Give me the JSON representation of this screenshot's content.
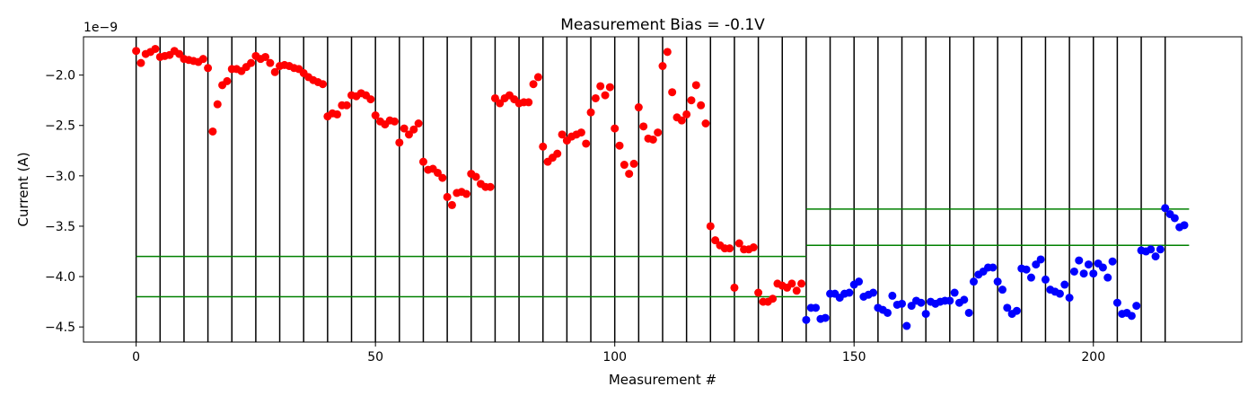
{
  "chart_data": {
    "type": "scatter",
    "title": "Measurement Bias = -0.1V",
    "xlabel": "Measurement #",
    "ylabel": "Current (A)",
    "y_offset_label": "1e−9",
    "xlim": [
      -11,
      231
    ],
    "ylim": [
      -4.65,
      -1.62
    ],
    "x_ticks": [
      0,
      50,
      100,
      150,
      200
    ],
    "x_tick_labels": [
      "0",
      "50",
      "100",
      "150",
      "200"
    ],
    "y_ticks": [
      -2.0,
      -2.5,
      -3.0,
      -3.5,
      -4.0,
      -4.5
    ],
    "y_tick_labels": [
      "−2.0",
      "−2.5",
      "−3.0",
      "−3.5",
      "−4.0",
      "−4.5"
    ],
    "grid": false,
    "vertical_lines": {
      "color": "#000000",
      "x": [
        0,
        5,
        10,
        15,
        20,
        25,
        30,
        35,
        40,
        45,
        50,
        55,
        60,
        65,
        70,
        75,
        80,
        85,
        90,
        95,
        100,
        105,
        110,
        115,
        120,
        125,
        130,
        135,
        140,
        145,
        150,
        155,
        160,
        165,
        170,
        175,
        180,
        185,
        190,
        195,
        200,
        205,
        210,
        215
      ]
    },
    "horizontal_lines": {
      "color": "#008000",
      "segments": [
        {
          "x": [
            0,
            140
          ],
          "y": -3.8
        },
        {
          "x": [
            0,
            140
          ],
          "y": -4.2
        },
        {
          "x": [
            140,
            220
          ],
          "y": -3.33
        },
        {
          "x": [
            140,
            220
          ],
          "y": -3.69
        }
      ]
    },
    "series": [
      {
        "color": "#ff0000",
        "points": [
          [
            0,
            -1.76
          ],
          [
            1,
            -1.88
          ],
          [
            2,
            -1.79
          ],
          [
            3,
            -1.77
          ],
          [
            4,
            -1.74
          ],
          [
            5,
            -1.82
          ],
          [
            6,
            -1.81
          ],
          [
            7,
            -1.8
          ],
          [
            8,
            -1.76
          ],
          [
            9,
            -1.79
          ],
          [
            10,
            -1.84
          ],
          [
            11,
            -1.85
          ],
          [
            12,
            -1.86
          ],
          [
            13,
            -1.87
          ],
          [
            14,
            -1.84
          ],
          [
            15,
            -1.93
          ],
          [
            16,
            -2.56
          ],
          [
            17,
            -2.29
          ],
          [
            18,
            -2.1
          ],
          [
            19,
            -2.06
          ],
          [
            20,
            -1.94
          ],
          [
            21,
            -1.94
          ],
          [
            22,
            -1.96
          ],
          [
            23,
            -1.92
          ],
          [
            24,
            -1.88
          ],
          [
            25,
            -1.81
          ],
          [
            26,
            -1.84
          ],
          [
            27,
            -1.82
          ],
          [
            28,
            -1.88
          ],
          [
            29,
            -1.97
          ],
          [
            30,
            -1.91
          ],
          [
            31,
            -1.9
          ],
          [
            32,
            -1.91
          ],
          [
            33,
            -1.93
          ],
          [
            34,
            -1.94
          ],
          [
            35,
            -1.98
          ],
          [
            36,
            -2.02
          ],
          [
            37,
            -2.05
          ],
          [
            38,
            -2.07
          ],
          [
            39,
            -2.09
          ],
          [
            40,
            -2.41
          ],
          [
            41,
            -2.38
          ],
          [
            42,
            -2.39
          ],
          [
            43,
            -2.3
          ],
          [
            44,
            -2.3
          ],
          [
            45,
            -2.2
          ],
          [
            46,
            -2.21
          ],
          [
            47,
            -2.18
          ],
          [
            48,
            -2.2
          ],
          [
            49,
            -2.24
          ],
          [
            50,
            -2.4
          ],
          [
            51,
            -2.46
          ],
          [
            52,
            -2.49
          ],
          [
            53,
            -2.45
          ],
          [
            54,
            -2.46
          ],
          [
            55,
            -2.67
          ],
          [
            56,
            -2.53
          ],
          [
            57,
            -2.59
          ],
          [
            58,
            -2.54
          ],
          [
            59,
            -2.48
          ],
          [
            60,
            -2.86
          ],
          [
            61,
            -2.94
          ],
          [
            62,
            -2.93
          ],
          [
            63,
            -2.97
          ],
          [
            64,
            -3.02
          ],
          [
            65,
            -3.21
          ],
          [
            66,
            -3.29
          ],
          [
            67,
            -3.17
          ],
          [
            68,
            -3.16
          ],
          [
            69,
            -3.18
          ],
          [
            70,
            -2.98
          ],
          [
            71,
            -3.01
          ],
          [
            72,
            -3.08
          ],
          [
            73,
            -3.11
          ],
          [
            74,
            -3.11
          ],
          [
            75,
            -2.23
          ],
          [
            76,
            -2.28
          ],
          [
            77,
            -2.23
          ],
          [
            78,
            -2.2
          ],
          [
            79,
            -2.24
          ],
          [
            80,
            -2.28
          ],
          [
            81,
            -2.27
          ],
          [
            82,
            -2.27
          ],
          [
            83,
            -2.09
          ],
          [
            84,
            -2.02
          ],
          [
            85,
            -2.71
          ],
          [
            86,
            -2.86
          ],
          [
            87,
            -2.82
          ],
          [
            88,
            -2.78
          ],
          [
            89,
            -2.59
          ],
          [
            90,
            -2.65
          ],
          [
            91,
            -2.61
          ],
          [
            92,
            -2.59
          ],
          [
            93,
            -2.57
          ],
          [
            94,
            -2.68
          ],
          [
            95,
            -2.37
          ],
          [
            96,
            -2.23
          ],
          [
            97,
            -2.11
          ],
          [
            98,
            -2.2
          ],
          [
            99,
            -2.12
          ],
          [
            100,
            -2.53
          ],
          [
            101,
            -2.7
          ],
          [
            102,
            -2.89
          ],
          [
            103,
            -2.98
          ],
          [
            104,
            -2.88
          ],
          [
            105,
            -2.32
          ],
          [
            106,
            -2.51
          ],
          [
            107,
            -2.63
          ],
          [
            108,
            -2.64
          ],
          [
            109,
            -2.57
          ],
          [
            110,
            -1.91
          ],
          [
            111,
            -1.77
          ],
          [
            112,
            -2.17
          ],
          [
            113,
            -2.42
          ],
          [
            114,
            -2.45
          ],
          [
            115,
            -2.39
          ],
          [
            116,
            -2.25
          ],
          [
            117,
            -2.1
          ],
          [
            118,
            -2.3
          ],
          [
            119,
            -2.48
          ],
          [
            120,
            -3.5
          ],
          [
            121,
            -3.64
          ],
          [
            122,
            -3.69
          ],
          [
            123,
            -3.72
          ],
          [
            124,
            -3.72
          ],
          [
            125,
            -4.11
          ],
          [
            126,
            -3.67
          ],
          [
            127,
            -3.73
          ],
          [
            128,
            -3.73
          ],
          [
            129,
            -3.71
          ],
          [
            130,
            -4.16
          ],
          [
            131,
            -4.25
          ],
          [
            132,
            -4.25
          ],
          [
            133,
            -4.22
          ],
          [
            134,
            -4.07
          ],
          [
            135,
            -4.09
          ],
          [
            136,
            -4.11
          ],
          [
            137,
            -4.07
          ],
          [
            138,
            -4.14
          ],
          [
            139,
            -4.07
          ]
        ]
      },
      {
        "color": "#0000ff",
        "points": [
          [
            140,
            -4.43
          ],
          [
            141,
            -4.31
          ],
          [
            142,
            -4.31
          ],
          [
            143,
            -4.42
          ],
          [
            144,
            -4.41
          ],
          [
            145,
            -4.17
          ],
          [
            146,
            -4.17
          ],
          [
            147,
            -4.21
          ],
          [
            148,
            -4.17
          ],
          [
            149,
            -4.16
          ],
          [
            150,
            -4.08
          ],
          [
            151,
            -4.05
          ],
          [
            152,
            -4.2
          ],
          [
            153,
            -4.18
          ],
          [
            154,
            -4.16
          ],
          [
            155,
            -4.31
          ],
          [
            156,
            -4.33
          ],
          [
            157,
            -4.36
          ],
          [
            158,
            -4.19
          ],
          [
            159,
            -4.28
          ],
          [
            160,
            -4.27
          ],
          [
            161,
            -4.49
          ],
          [
            162,
            -4.29
          ],
          [
            163,
            -4.24
          ],
          [
            164,
            -4.26
          ],
          [
            165,
            -4.37
          ],
          [
            166,
            -4.25
          ],
          [
            167,
            -4.27
          ],
          [
            168,
            -4.25
          ],
          [
            169,
            -4.24
          ],
          [
            170,
            -4.24
          ],
          [
            171,
            -4.16
          ],
          [
            172,
            -4.26
          ],
          [
            173,
            -4.23
          ],
          [
            174,
            -4.36
          ],
          [
            175,
            -4.05
          ],
          [
            176,
            -3.98
          ],
          [
            177,
            -3.95
          ],
          [
            178,
            -3.91
          ],
          [
            179,
            -3.91
          ],
          [
            180,
            -4.05
          ],
          [
            181,
            -4.13
          ],
          [
            182,
            -4.31
          ],
          [
            183,
            -4.37
          ],
          [
            184,
            -4.34
          ],
          [
            185,
            -3.92
          ],
          [
            186,
            -3.93
          ],
          [
            187,
            -4.01
          ],
          [
            188,
            -3.88
          ],
          [
            189,
            -3.83
          ],
          [
            190,
            -4.03
          ],
          [
            191,
            -4.13
          ],
          [
            192,
            -4.15
          ],
          [
            193,
            -4.17
          ],
          [
            194,
            -4.08
          ],
          [
            195,
            -4.21
          ],
          [
            196,
            -3.95
          ],
          [
            197,
            -3.84
          ],
          [
            198,
            -3.97
          ],
          [
            199,
            -3.88
          ],
          [
            200,
            -3.97
          ],
          [
            201,
            -3.87
          ],
          [
            202,
            -3.91
          ],
          [
            203,
            -4.01
          ],
          [
            204,
            -3.85
          ],
          [
            205,
            -4.26
          ],
          [
            206,
            -4.37
          ],
          [
            207,
            -4.36
          ],
          [
            208,
            -4.39
          ],
          [
            209,
            -4.29
          ],
          [
            210,
            -3.74
          ],
          [
            211,
            -3.75
          ],
          [
            212,
            -3.73
          ],
          [
            213,
            -3.8
          ],
          [
            214,
            -3.73
          ],
          [
            215,
            -3.32
          ],
          [
            216,
            -3.38
          ],
          [
            217,
            -3.42
          ],
          [
            218,
            -3.51
          ],
          [
            219,
            -3.49
          ]
        ]
      }
    ]
  }
}
